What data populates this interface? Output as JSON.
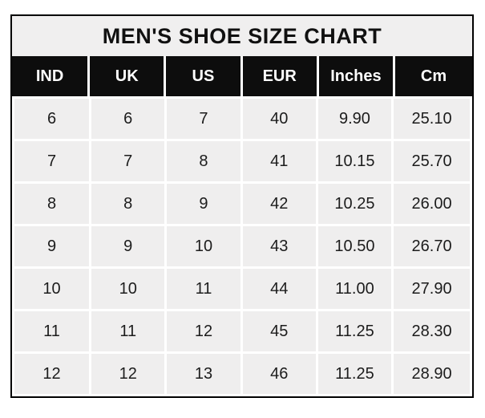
{
  "colors": {
    "page_background": "#ffffff",
    "title_background": "#f0efef",
    "header_background": "#0d0d0d",
    "header_text": "#ffffff",
    "cell_background": "#efeeee",
    "cell_text": "#1c1c1c",
    "border": "#000000"
  },
  "chart_data": {
    "type": "table",
    "title": "MEN'S SHOE SIZE CHART",
    "columns": [
      "IND",
      "UK",
      "US",
      "EUR",
      "Inches",
      "Cm"
    ],
    "rows": [
      [
        "6",
        "6",
        "7",
        "40",
        "9.90",
        "25.10"
      ],
      [
        "7",
        "7",
        "8",
        "41",
        "10.15",
        "25.70"
      ],
      [
        "8",
        "8",
        "9",
        "42",
        "10.25",
        "26.00"
      ],
      [
        "9",
        "9",
        "10",
        "43",
        "10.50",
        "26.70"
      ],
      [
        "10",
        "10",
        "11",
        "44",
        "11.00",
        "27.90"
      ],
      [
        "11",
        "11",
        "12",
        "45",
        "11.25",
        "28.30"
      ],
      [
        "12",
        "12",
        "13",
        "46",
        "11.25",
        "28.90"
      ]
    ]
  }
}
